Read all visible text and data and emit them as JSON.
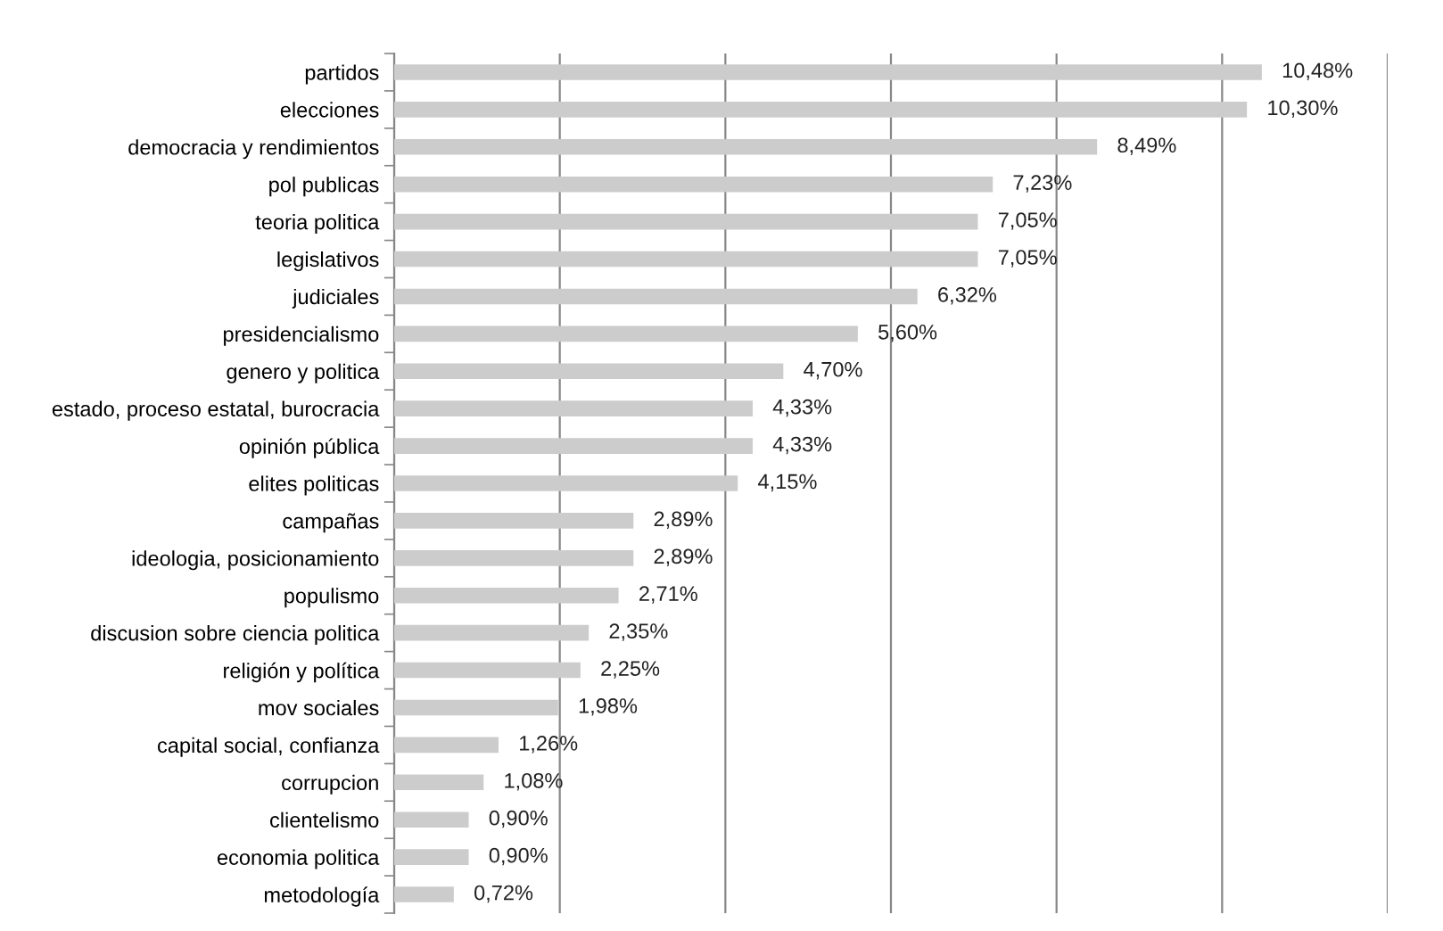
{
  "chart_data": {
    "type": "bar",
    "orientation": "horizontal",
    "categories": [
      "partidos",
      "elecciones",
      "democracia y rendimientos",
      "pol publicas",
      "teoria politica",
      "legislativos",
      "judiciales",
      "presidencialismo",
      "genero y politica",
      "estado, proceso estatal, burocracia",
      "opinión pública",
      "elites politicas",
      "campañas",
      "ideologia, posicionamiento",
      "populismo",
      "discusion sobre ciencia politica",
      "religión y política",
      "mov sociales",
      "capital social, confianza",
      "corrupcion",
      "clientelismo",
      "economia politica",
      "metodología"
    ],
    "values": [
      10.48,
      10.3,
      8.49,
      7.23,
      7.05,
      7.05,
      6.32,
      5.6,
      4.7,
      4.33,
      4.33,
      4.15,
      2.89,
      2.89,
      2.71,
      2.35,
      2.25,
      1.98,
      1.26,
      1.08,
      0.9,
      0.9,
      0.72
    ],
    "value_labels": [
      "10,48%",
      "10,30%",
      "8,49%",
      "7,23%",
      "7,05%",
      "7,05%",
      "6,32%",
      "5,60%",
      "4,70%",
      "4,33%",
      "4,33%",
      "4,15%",
      "2,89%",
      "2,89%",
      "2,71%",
      "2,35%",
      "2,25%",
      "1,98%",
      "1,26%",
      "1,08%",
      "0,90%",
      "0,90%",
      "0,72%"
    ],
    "color": "#cccccc",
    "xlim": [
      0,
      12
    ],
    "xticks": [
      {
        "value": 0,
        "label": null
      },
      {
        "value": 2,
        "label": null
      },
      {
        "value": 4,
        "label": null
      },
      {
        "value": 6,
        "label": null
      },
      {
        "value": 8,
        "label": null
      },
      {
        "value": 10,
        "label": null
      },
      {
        "value": 12,
        "label": null
      }
    ],
    "grid": "x",
    "tick_labels": "y"
  }
}
